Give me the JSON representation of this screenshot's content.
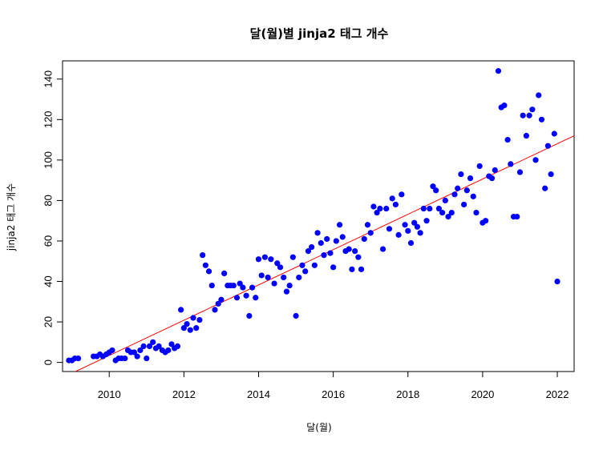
{
  "chart_data": {
    "type": "scatter",
    "title": "달(월)별 jinja2 태그 개수",
    "xlabel": "달(월)",
    "ylabel": "jinja2 태그 개수",
    "xlim": [
      2008.75,
      2022.45
    ],
    "ylim": [
      -4.5,
      149
    ],
    "xticks": [
      2010,
      2012,
      2014,
      2016,
      2018,
      2020,
      2022
    ],
    "yticks": [
      0,
      20,
      40,
      60,
      80,
      100,
      120,
      140
    ],
    "grid": false,
    "point_color": "#0000ff",
    "trend_color": "#ff0000",
    "trendline": {
      "x": [
        2008.75,
        2022.45
      ],
      "y": [
        -7.5,
        112
      ]
    },
    "points": [
      [
        2008.92,
        1
      ],
      [
        2009.0,
        1
      ],
      [
        2009.08,
        2
      ],
      [
        2009.17,
        2
      ],
      [
        2009.58,
        3
      ],
      [
        2009.67,
        3
      ],
      [
        2009.75,
        4
      ],
      [
        2009.83,
        3
      ],
      [
        2009.92,
        4
      ],
      [
        2010.0,
        5
      ],
      [
        2010.08,
        6
      ],
      [
        2010.17,
        1
      ],
      [
        2010.25,
        2
      ],
      [
        2010.33,
        2
      ],
      [
        2010.42,
        2
      ],
      [
        2010.5,
        6
      ],
      [
        2010.58,
        5
      ],
      [
        2010.67,
        5
      ],
      [
        2010.75,
        3
      ],
      [
        2010.83,
        6
      ],
      [
        2010.92,
        8
      ],
      [
        2011.0,
        2
      ],
      [
        2011.08,
        8
      ],
      [
        2011.17,
        10
      ],
      [
        2011.25,
        7
      ],
      [
        2011.33,
        8
      ],
      [
        2011.42,
        6
      ],
      [
        2011.5,
        5
      ],
      [
        2011.58,
        6
      ],
      [
        2011.67,
        9
      ],
      [
        2011.75,
        7
      ],
      [
        2011.83,
        8
      ],
      [
        2011.92,
        26
      ],
      [
        2012.0,
        17
      ],
      [
        2012.08,
        19
      ],
      [
        2012.17,
        16
      ],
      [
        2012.25,
        22
      ],
      [
        2012.33,
        17
      ],
      [
        2012.42,
        21
      ],
      [
        2012.5,
        53
      ],
      [
        2012.58,
        48
      ],
      [
        2012.67,
        45
      ],
      [
        2012.75,
        38
      ],
      [
        2012.83,
        26
      ],
      [
        2012.92,
        29
      ],
      [
        2013.0,
        31
      ],
      [
        2013.08,
        44
      ],
      [
        2013.17,
        38
      ],
      [
        2013.25,
        38
      ],
      [
        2013.33,
        38
      ],
      [
        2013.42,
        32
      ],
      [
        2013.5,
        39
      ],
      [
        2013.58,
        37
      ],
      [
        2013.67,
        33
      ],
      [
        2013.75,
        23
      ],
      [
        2013.83,
        37
      ],
      [
        2013.92,
        32
      ],
      [
        2014.0,
        51
      ],
      [
        2014.08,
        43
      ],
      [
        2014.17,
        52
      ],
      [
        2014.25,
        42
      ],
      [
        2014.33,
        51
      ],
      [
        2014.42,
        39
      ],
      [
        2014.5,
        49
      ],
      [
        2014.58,
        47
      ],
      [
        2014.67,
        42
      ],
      [
        2014.75,
        35
      ],
      [
        2014.83,
        38
      ],
      [
        2014.92,
        52
      ],
      [
        2015.0,
        23
      ],
      [
        2015.08,
        42
      ],
      [
        2015.17,
        48
      ],
      [
        2015.25,
        45
      ],
      [
        2015.33,
        55
      ],
      [
        2015.42,
        57
      ],
      [
        2015.5,
        48
      ],
      [
        2015.58,
        64
      ],
      [
        2015.67,
        59
      ],
      [
        2015.75,
        53
      ],
      [
        2015.83,
        61
      ],
      [
        2015.92,
        54
      ],
      [
        2016.0,
        47
      ],
      [
        2016.08,
        60
      ],
      [
        2016.17,
        68
      ],
      [
        2016.25,
        62
      ],
      [
        2016.33,
        55
      ],
      [
        2016.42,
        56
      ],
      [
        2016.5,
        46
      ],
      [
        2016.58,
        55
      ],
      [
        2016.67,
        52
      ],
      [
        2016.75,
        46
      ],
      [
        2016.83,
        61
      ],
      [
        2016.92,
        68
      ],
      [
        2017.0,
        64
      ],
      [
        2017.08,
        77
      ],
      [
        2017.17,
        74
      ],
      [
        2017.25,
        76
      ],
      [
        2017.33,
        56
      ],
      [
        2017.42,
        76
      ],
      [
        2017.5,
        66
      ],
      [
        2017.58,
        81
      ],
      [
        2017.67,
        78
      ],
      [
        2017.75,
        63
      ],
      [
        2017.83,
        83
      ],
      [
        2017.92,
        68
      ],
      [
        2018.0,
        65
      ],
      [
        2018.08,
        59
      ],
      [
        2018.17,
        69
      ],
      [
        2018.25,
        67
      ],
      [
        2018.33,
        64
      ],
      [
        2018.42,
        76
      ],
      [
        2018.5,
        70
      ],
      [
        2018.58,
        76
      ],
      [
        2018.67,
        87
      ],
      [
        2018.75,
        85
      ],
      [
        2018.83,
        76
      ],
      [
        2018.92,
        74
      ],
      [
        2019.0,
        80
      ],
      [
        2019.08,
        72
      ],
      [
        2019.17,
        74
      ],
      [
        2019.25,
        83
      ],
      [
        2019.33,
        86
      ],
      [
        2019.42,
        93
      ],
      [
        2019.5,
        78
      ],
      [
        2019.58,
        85
      ],
      [
        2019.67,
        91
      ],
      [
        2019.75,
        82
      ],
      [
        2019.83,
        74
      ],
      [
        2019.92,
        97
      ],
      [
        2020.0,
        69
      ],
      [
        2020.08,
        70
      ],
      [
        2020.17,
        92
      ],
      [
        2020.25,
        91
      ],
      [
        2020.33,
        95
      ],
      [
        2020.42,
        144
      ],
      [
        2020.5,
        126
      ],
      [
        2020.58,
        127
      ],
      [
        2020.67,
        110
      ],
      [
        2020.75,
        98
      ],
      [
        2020.83,
        72
      ],
      [
        2020.92,
        72
      ],
      [
        2021.0,
        94
      ],
      [
        2021.08,
        122
      ],
      [
        2021.17,
        112
      ],
      [
        2021.25,
        122
      ],
      [
        2021.33,
        125
      ],
      [
        2021.42,
        100
      ],
      [
        2021.5,
        132
      ],
      [
        2021.58,
        120
      ],
      [
        2021.67,
        86
      ],
      [
        2021.75,
        107
      ],
      [
        2021.83,
        93
      ],
      [
        2021.92,
        113
      ],
      [
        2022.0,
        40
      ]
    ]
  }
}
